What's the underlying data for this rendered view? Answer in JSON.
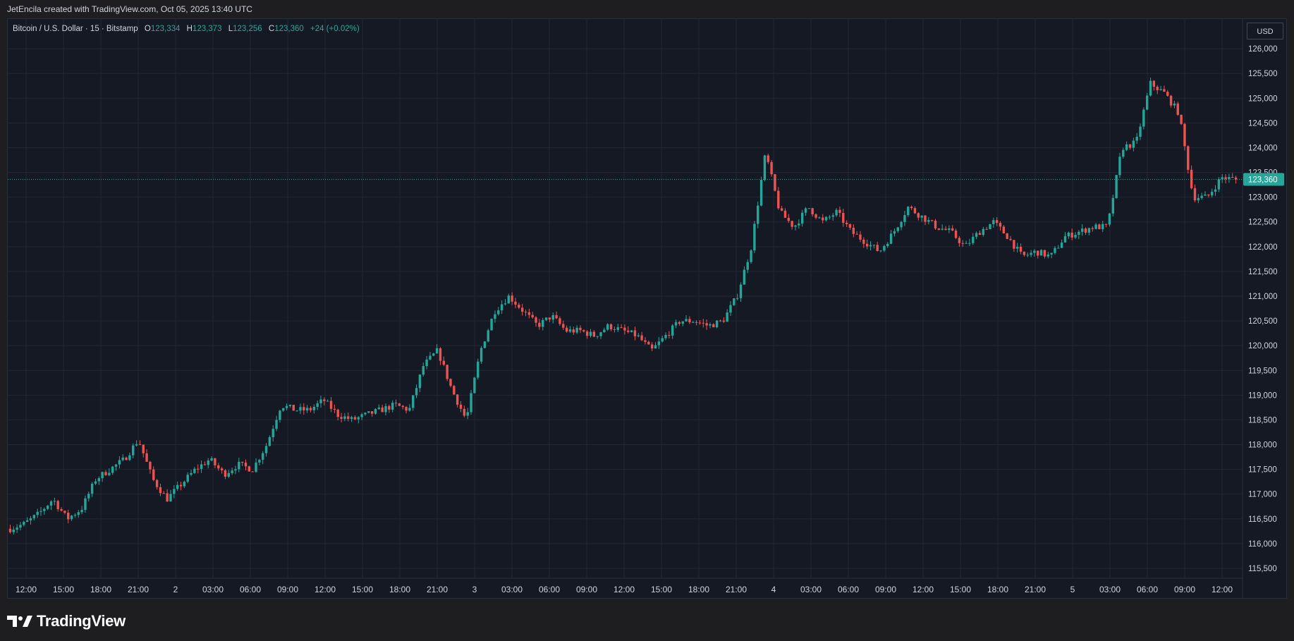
{
  "header": {
    "attribution": "JetEncila created with TradingView.com, Oct 05, 2025 13:40 UTC"
  },
  "legend": {
    "symbol": "Bitcoin / U.S. Dollar · 15 · Bitstamp",
    "open_label": "O",
    "open": "123,334",
    "high_label": "H",
    "high": "123,373",
    "low_label": "L",
    "low": "123,256",
    "close_label": "C",
    "close": "123,360",
    "change": "+24 (+0.02%)"
  },
  "currency_button": "USD",
  "footer": {
    "brand": "TradingView"
  },
  "colors": {
    "up": "#26a69a",
    "down": "#ef5350",
    "grid": "#232733",
    "text": "#d1d4dc",
    "price_tag": "#26a69a"
  },
  "chart_data": {
    "type": "candlestick",
    "title": "",
    "ylim": [
      115300,
      126600
    ],
    "y_ticks": [
      115500,
      116000,
      116500,
      117000,
      117500,
      118000,
      118500,
      119000,
      119500,
      120000,
      120500,
      121000,
      121500,
      122000,
      122500,
      123000,
      123500,
      124000,
      124500,
      125000,
      125500,
      126000
    ],
    "y_tick_labels": [
      "115,500",
      "116,000",
      "116,500",
      "117,000",
      "117,500",
      "118,000",
      "118,500",
      "119,000",
      "119,500",
      "120,000",
      "120,500",
      "121,000",
      "121,500",
      "122,000",
      "122,500",
      "123,000",
      "123,500",
      "124,000",
      "124,500",
      "125,000",
      "125,500",
      "126,000"
    ],
    "x_ticks": [
      "12:00",
      "15:00",
      "18:00",
      "21:00",
      "2",
      "03:00",
      "06:00",
      "09:00",
      "12:00",
      "15:00",
      "18:00",
      "21:00",
      "3",
      "03:00",
      "06:00",
      "09:00",
      "12:00",
      "15:00",
      "18:00",
      "21:00",
      "4",
      "03:00",
      "06:00",
      "09:00",
      "12:00",
      "15:00",
      "18:00",
      "21:00",
      "5",
      "03:00",
      "06:00",
      "09:00",
      "12:00"
    ],
    "last_price": 123360,
    "last_price_label": "123,360",
    "grid": true,
    "closes": [
      116300,
      116400,
      116600,
      116900,
      116500,
      116700,
      117300,
      117500,
      117700,
      118100,
      117300,
      116900,
      117200,
      117500,
      117700,
      117400,
      117600,
      117500,
      118000,
      118800,
      118700,
      118700,
      118900,
      118600,
      118500,
      118600,
      118700,
      118800,
      118700,
      119600,
      119900,
      119100,
      118500,
      119900,
      120700,
      121000,
      120700,
      120400,
      120600,
      120300,
      120300,
      120200,
      120400,
      120300,
      120200,
      119900,
      120200,
      120500,
      120500,
      120400,
      120500,
      121000,
      122000,
      123900,
      122700,
      122400,
      122800,
      122500,
      122700,
      122300,
      122100,
      121900,
      122300,
      122800,
      122600,
      122400,
      122300,
      122000,
      122300,
      122500,
      122200,
      121800,
      121900,
      121800,
      122200,
      122300,
      122400,
      122400,
      124000,
      124100,
      125300,
      125100,
      124700,
      123000,
      123000,
      123400,
      123360
    ]
  }
}
